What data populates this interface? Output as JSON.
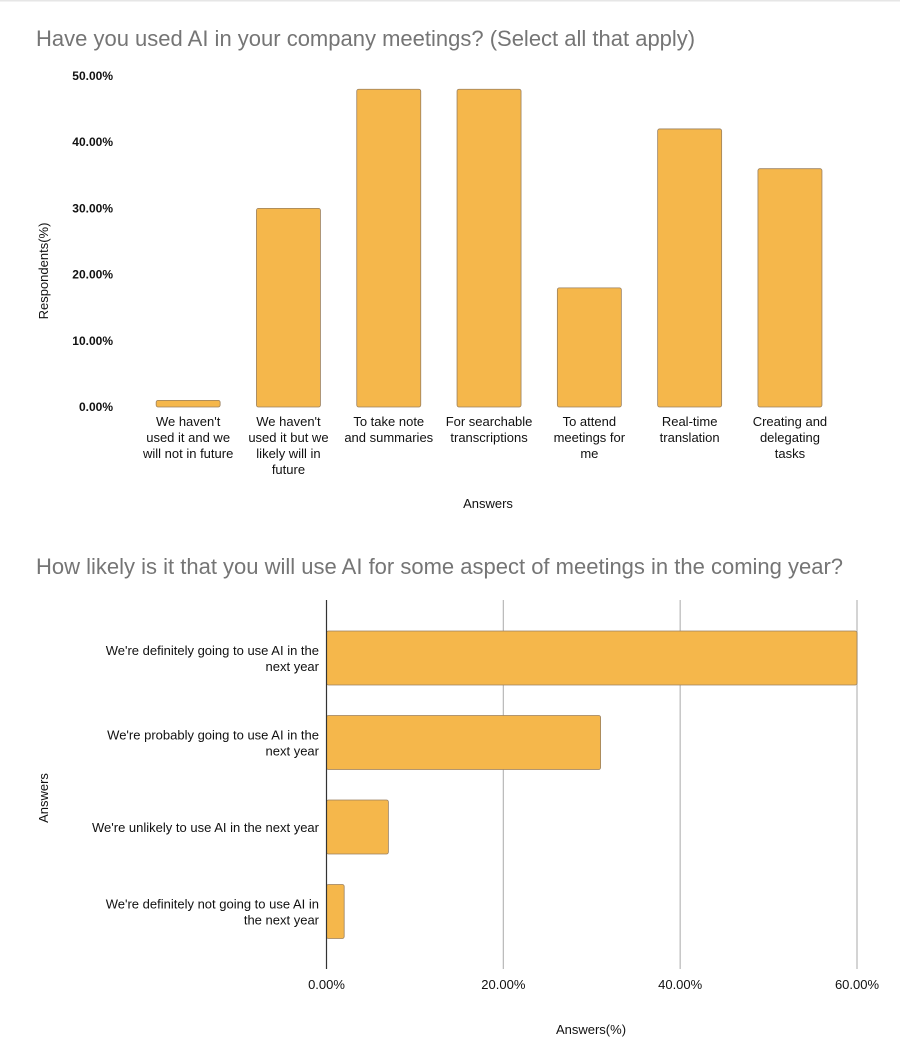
{
  "chart_data": [
    {
      "type": "bar",
      "title": "Have you used AI in your company meetings? (Select all that apply)",
      "xlabel": "Answers",
      "ylabel": "Respondents(%)",
      "ylim": [
        0,
        50
      ],
      "yticks": [
        "0.00%",
        "10.00%",
        "20.00%",
        "30.00%",
        "40.00%",
        "50.00%"
      ],
      "bar_color": "#f5b74b",
      "categories": [
        [
          "We haven't",
          "used it and we",
          "will not in future"
        ],
        [
          "We haven't",
          "used it but we",
          "likely will in",
          "future"
        ],
        [
          "To take note",
          "and summaries"
        ],
        [
          "For searchable",
          "transcriptions"
        ],
        [
          "To attend",
          "meetings for",
          "me"
        ],
        [
          "Real-time",
          "translation"
        ],
        [
          "Creating and",
          "delegating",
          "tasks"
        ]
      ],
      "values": [
        1,
        30,
        48,
        48,
        18,
        42,
        36
      ]
    },
    {
      "type": "bar",
      "orientation": "horizontal",
      "title": "How likely is it that you will use AI for some aspect of meetings in the coming year?",
      "xlabel": "Answers(%)",
      "ylabel": "Answers",
      "xlim": [
        0,
        60
      ],
      "xticks": [
        "0.00%",
        "20.00%",
        "40.00%",
        "60.00%"
      ],
      "bar_color": "#f5b74b",
      "categories": [
        [
          "We're definitely going to use AI in the",
          "next year"
        ],
        [
          "We're probably going to use AI in the",
          "next year"
        ],
        [
          "We're unlikely to use AI in the next year"
        ],
        [
          "We're definitely not going to use AI in",
          "the next year"
        ]
      ],
      "values": [
        60,
        31,
        7,
        2
      ]
    }
  ]
}
